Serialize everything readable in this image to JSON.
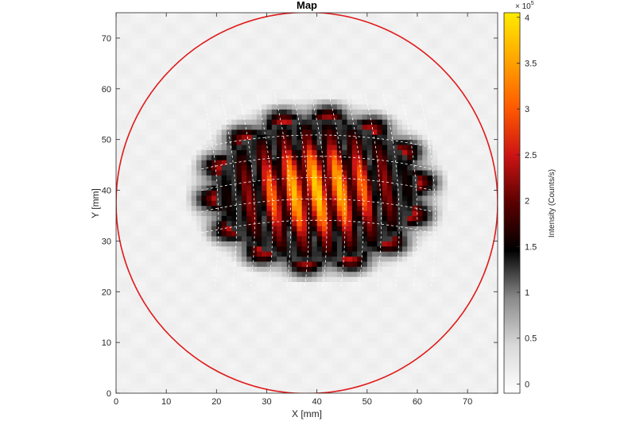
{
  "chart_data": {
    "type": "heatmap",
    "title": "Map",
    "xlabel": "X [mm]",
    "ylabel": "Y [mm]",
    "xlim": [
      0,
      76
    ],
    "ylim": [
      0,
      75
    ],
    "x_ticks": [
      0,
      10,
      20,
      30,
      40,
      50,
      60,
      70
    ],
    "y_ticks": [
      0,
      10,
      20,
      30,
      40,
      50,
      60,
      70
    ],
    "colorbar": {
      "label": "Intensity (Counts/s)",
      "multiplier": "× 10",
      "exponent": "5",
      "range": [
        -0.1,
        4.05
      ],
      "ticks": [
        "0",
        "0.5",
        "1",
        "1.5",
        "2",
        "2.5",
        "3",
        "3.5",
        "4"
      ],
      "tick_values": [
        0,
        0.5,
        1,
        1.5,
        2,
        2.5,
        3,
        3.5,
        4
      ],
      "colormap": [
        "#ffffff",
        "#d9d9d9",
        "#8a8a8a",
        "#000000",
        "#5a0000",
        "#cc1414",
        "#ff5a00",
        "#ffa500",
        "#ffeb00"
      ]
    },
    "background_level": 0.1,
    "hot_region": {
      "center_mm": [
        40,
        40
      ],
      "semi_axes_mm": [
        20,
        14
      ],
      "peak_value": 3.9
    },
    "annotations": {
      "circle": {
        "center_mm": [
          38,
          37.5
        ],
        "radius_mm": 38,
        "color": "#e01b1b"
      },
      "grid_overlay_color": "#ffffff"
    }
  }
}
